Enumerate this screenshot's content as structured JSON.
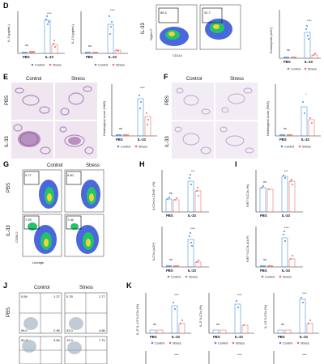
{
  "panel_labels": {
    "D": "D",
    "E": "E",
    "F": "F",
    "G": "G",
    "H": "H",
    "I": "I",
    "J": "J",
    "K": "K"
  },
  "legend": {
    "control": "Control",
    "stress": "Stress"
  },
  "colors": {
    "control": "#4a90d9",
    "stress": "#e8706a",
    "histo_bg": "#efe6f0",
    "histo_tissue": "#b58cc2",
    "flow_bg": "#ffffff"
  },
  "groups": {
    "pbs": "PBS",
    "il33": "IL-33"
  },
  "sig": {
    "ns": "ns",
    "four": "****",
    "three": "***",
    "one": "*",
    "two": "**"
  },
  "columns": {
    "control": "Control",
    "stress": "Stress"
  },
  "rows": {
    "pbs": "PBS",
    "il33": "IL-33"
  },
  "D": {
    "y1": "IL-5 (pg/mL)",
    "y2": "IL-13 (pg/mL)",
    "axis_y": "IL-33",
    "axis_siglec": "Siglec-F",
    "axis_x": "CD11c",
    "gate1": "85.4",
    "gate2": "32.7",
    "y3": "Eosinophils (x10⁴)"
  },
  "E": {
    "y": "Histological score (H&E)"
  },
  "F": {
    "y": "Histological score (PAS)"
  },
  "G": {
    "axis_y": "CD90.2",
    "axis_x": "Lineage",
    "gates": [
      "0.77",
      "0.60",
      "7.93",
      "7.06"
    ]
  },
  "H": {
    "y1": "ILC2s in CD45⁺ (%)",
    "y2": "ILC2s (x10⁴)"
  },
  "I": {
    "y1": "KI67⁺ILC2s (%)",
    "y2": "KI67⁺ILC2s (x10⁴)"
  },
  "J": {
    "quads": [
      [
        "0.69",
        "1.27",
        "96.0",
        "2.96"
      ],
      [
        "0.78",
        "1.77",
        "93.0",
        "4.86"
      ],
      [
        "50.3",
        "3.85",
        "19.3",
        "7.70"
      ]
    ]
  },
  "K": {
    "y1": "IL-5⁺IL-13⁺ILC2s (%)",
    "y2": "IL-5⁺ILC2s (%)",
    "y3": "IL-13⁺ILC2s (%)"
  }
}
